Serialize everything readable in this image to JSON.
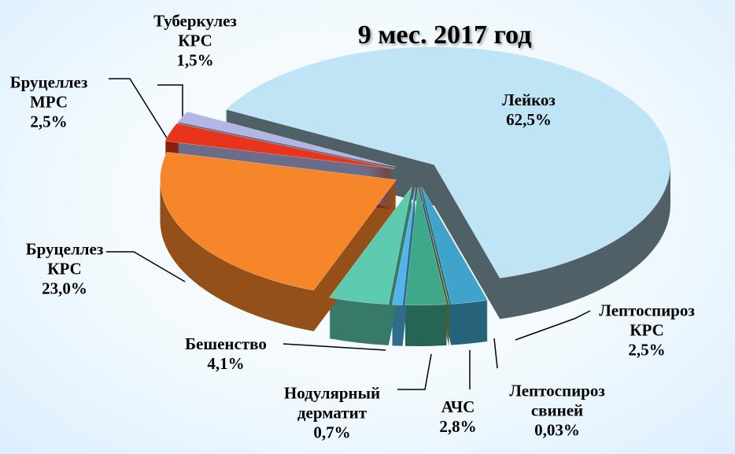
{
  "chart_data": {
    "type": "pie",
    "title": "9 мес. 2017 год",
    "categories": [
      "Лейкоз",
      "Лептоспироз КРС",
      "Лептоспироз свиней",
      "АЧС",
      "Нодулярный дерматит",
      "Бешенство",
      "Бруцеллез КРС",
      "Бруцеллез МРС",
      "Туберкулез КРС"
    ],
    "values": [
      62.5,
      2.5,
      0.03,
      2.8,
      0.7,
      4.1,
      23.0,
      2.5,
      1.5
    ],
    "value_labels": [
      "62,5%",
      "2,5%",
      "0,03%",
      "2,8%",
      "0,7%",
      "4,1%",
      "23,0%",
      "2,5%",
      "1,5%"
    ],
    "colors": [
      "#bfe4f5",
      "#3fa3cc",
      "#8f9a2e",
      "#3fa88a",
      "#4fb5ea",
      "#5ccbb0",
      "#f6862a",
      "#e8341c",
      "#b2b6e2"
    ]
  }
}
